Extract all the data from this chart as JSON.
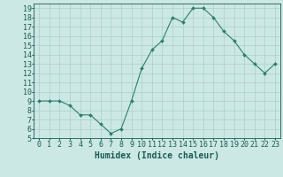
{
  "x": [
    0,
    1,
    2,
    3,
    4,
    5,
    6,
    7,
    8,
    9,
    10,
    11,
    12,
    13,
    14,
    15,
    16,
    17,
    18,
    19,
    20,
    21,
    22,
    23
  ],
  "y": [
    9,
    9,
    9,
    8.5,
    7.5,
    7.5,
    6.5,
    5.5,
    6,
    9,
    12.5,
    14.5,
    15.5,
    18,
    17.5,
    19,
    19,
    18,
    16.5,
    15.5,
    14,
    13,
    12,
    13
  ],
  "xlabel": "Humidex (Indice chaleur)",
  "xlim": [
    -0.5,
    23.5
  ],
  "ylim": [
    5,
    19.5
  ],
  "yticks": [
    5,
    6,
    7,
    8,
    9,
    10,
    11,
    12,
    13,
    14,
    15,
    16,
    17,
    18,
    19
  ],
  "xticks": [
    0,
    1,
    2,
    3,
    4,
    5,
    6,
    7,
    8,
    9,
    10,
    11,
    12,
    13,
    14,
    15,
    16,
    17,
    18,
    19,
    20,
    21,
    22,
    23
  ],
  "line_color": "#2e7d6e",
  "marker_color": "#2e7d6e",
  "bg_color": "#cce8e4",
  "grid_color": "#aacfcb",
  "axis_label_color": "#1a5c52",
  "tick_color": "#1a5c52",
  "xlabel_fontsize": 7,
  "tick_fontsize": 6
}
